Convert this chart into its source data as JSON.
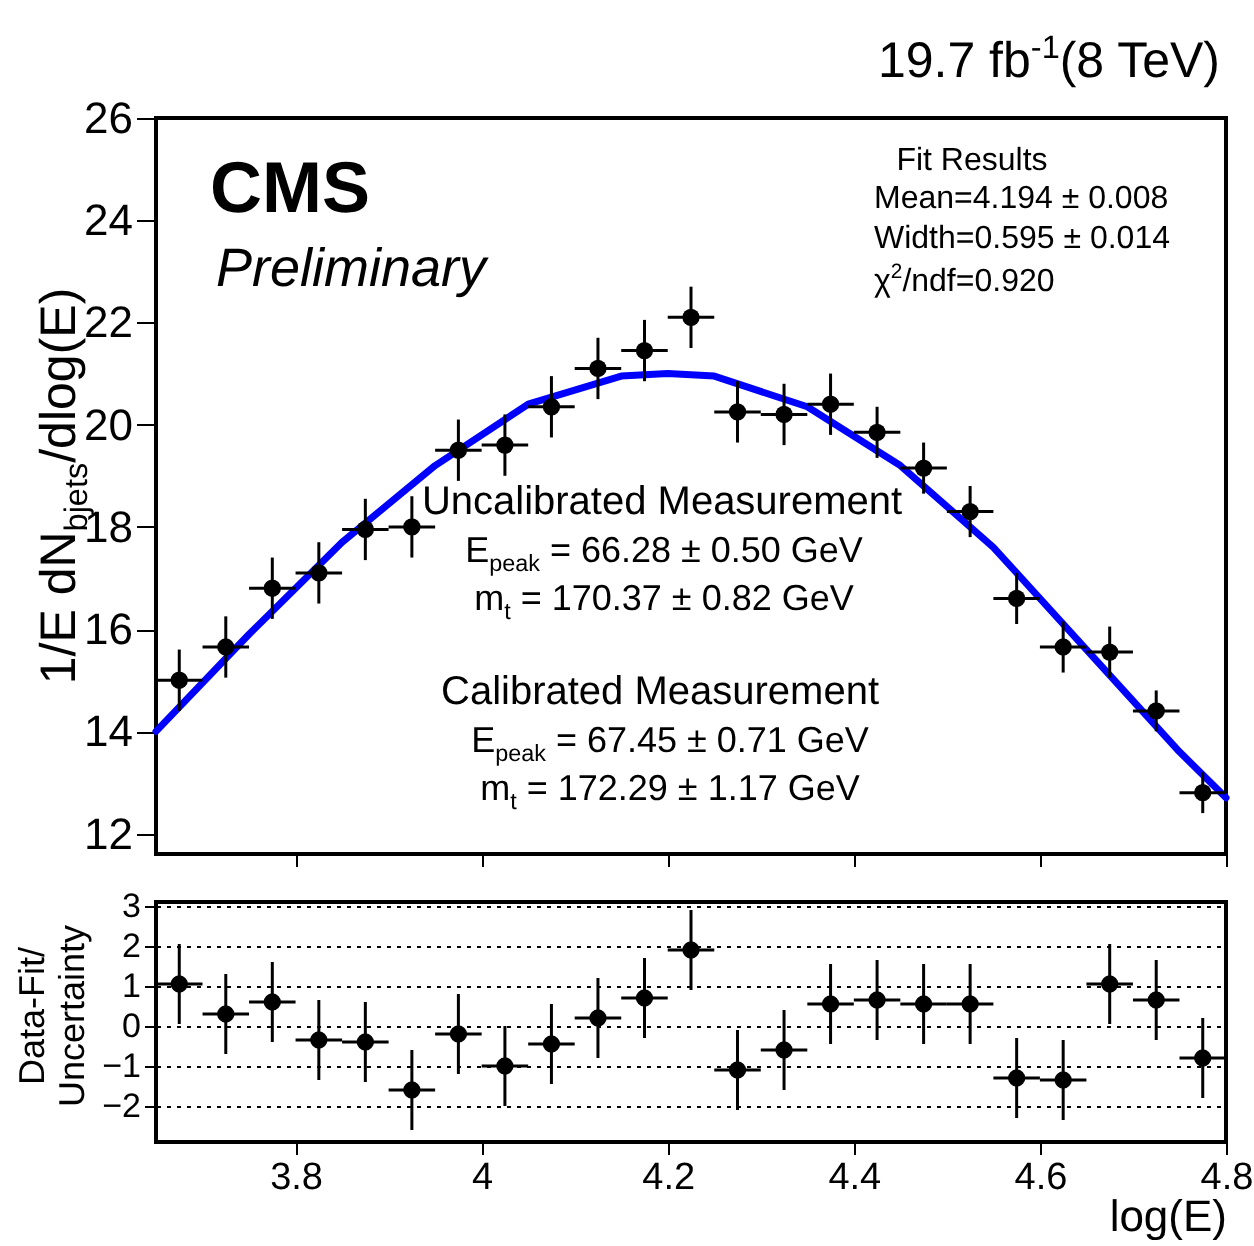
{
  "chart_data": [
    {
      "type": "scatter",
      "title": "19.7 fb$^{-1}$(8 TeV)",
      "ylabel": "1/E dN$_{bjets}$/dlog(E)",
      "annotations": [
        "CMS",
        "Preliminary",
        "Fit Results",
        "Mean=4.194 ± 0.008",
        "Width=0.595 ± 0.014",
        "χ$^{2}$/ndf=0.920",
        "Uncalibrated Measurement",
        "E$_{peak}$ = 66.28 ± 0.50 GeV",
        "m$_{t}$ = 170.37 ± 0.82 GeV",
        "Calibrated Measurement",
        "E$_{peak}$ = 67.45 ± 0.71 GeV",
        "m$_{t}$ = 172.29 ± 1.17 GeV"
      ],
      "xlim": [
        3.65,
        4.8
      ],
      "xticks": [
        3.8,
        4,
        4.2,
        4.4,
        4.6,
        4.8
      ],
      "ylim": [
        11.6,
        26
      ],
      "yticks": [
        12,
        14,
        16,
        18,
        20,
        22,
        24,
        26
      ],
      "tick_labels": "y",
      "marker": "circle",
      "series": [
        {
          "color": "#000000",
          "x": [
            3.675,
            3.725,
            3.775,
            3.825,
            3.875,
            3.925,
            3.975,
            4.025,
            4.075,
            4.125,
            4.175,
            4.225,
            4.275,
            4.325,
            4.375,
            4.425,
            4.475,
            4.525,
            4.575,
            4.625,
            4.675,
            4.725,
            4.775
          ],
          "values": [
            15.0,
            15.65,
            16.8,
            17.1,
            17.95,
            18.0,
            19.5,
            19.6,
            20.35,
            21.1,
            21.45,
            22.1,
            20.25,
            20.2,
            20.4,
            19.85,
            19.15,
            18.3,
            16.6,
            15.65,
            15.55,
            14.4,
            12.8
          ],
          "errors": [
            0.6,
            0.6,
            0.6,
            0.6,
            0.6,
            0.6,
            0.6,
            0.6,
            0.6,
            0.6,
            0.6,
            0.6,
            0.6,
            0.6,
            0.6,
            0.5,
            0.5,
            0.5,
            0.5,
            0.5,
            0.5,
            0.4,
            0.4
          ],
          "xerrors": [
            0.025,
            0.025,
            0.025,
            0.025,
            0.025,
            0.025,
            0.025,
            0.025,
            0.025,
            0.025,
            0.025,
            0.025,
            0.025,
            0.025,
            0.025,
            0.025,
            0.025,
            0.025,
            0.025,
            0.025,
            0.025,
            0.025,
            0.025
          ]
        },
        {
          "type": "line",
          "marker": "none",
          "color": "#0000ff",
          "x": [
            3.65,
            3.75,
            3.85,
            3.95,
            4.05,
            4.15,
            4.2,
            4.25,
            4.35,
            4.45,
            4.55,
            4.65,
            4.75,
            4.8
          ],
          "values": [
            14.0,
            15.9,
            17.7,
            19.2,
            20.4,
            20.95,
            21.0,
            20.95,
            20.35,
            19.2,
            17.6,
            15.6,
            13.6,
            12.7
          ]
        }
      ]
    },
    {
      "type": "scatter",
      "xlabel": "log(E)",
      "ylabel": "Data-Fit/Uncertainty",
      "grid": "y",
      "marker": "circle",
      "xlim": [
        3.65,
        4.8
      ],
      "xticks": [
        3.8,
        4,
        4.2,
        4.4,
        4.6,
        4.8
      ],
      "ylim": [
        -2.9,
        3.1
      ],
      "yticks": [
        -2,
        -1,
        0,
        1,
        2,
        3
      ],
      "series": [
        {
          "color": "#000000",
          "x": [
            3.675,
            3.725,
            3.775,
            3.825,
            3.875,
            3.925,
            3.975,
            4.025,
            4.075,
            4.125,
            4.175,
            4.225,
            4.275,
            4.325,
            4.375,
            4.425,
            4.475,
            4.525,
            4.575,
            4.625,
            4.675,
            4.725,
            4.775
          ],
          "values": [
            1.05,
            0.3,
            0.6,
            -0.35,
            -0.4,
            -1.6,
            -0.2,
            -1.0,
            -0.45,
            0.2,
            0.7,
            1.9,
            -1.1,
            -0.6,
            0.55,
            0.65,
            0.55,
            0.55,
            -1.3,
            -1.35,
            1.05,
            0.65,
            -0.8
          ],
          "errors": [
            1,
            1,
            1,
            1,
            1,
            1,
            1,
            1,
            1,
            1,
            1,
            1,
            1,
            1,
            1,
            1,
            1,
            1,
            1,
            1,
            1,
            1,
            1
          ],
          "xerrors": [
            0.025,
            0.025,
            0.025,
            0.025,
            0.025,
            0.025,
            0.025,
            0.025,
            0.025,
            0.025,
            0.025,
            0.025,
            0.025,
            0.025,
            0.025,
            0.025,
            0.025,
            0.025,
            0.025,
            0.025,
            0.025,
            0.025,
            0.025
          ]
        }
      ]
    }
  ]
}
